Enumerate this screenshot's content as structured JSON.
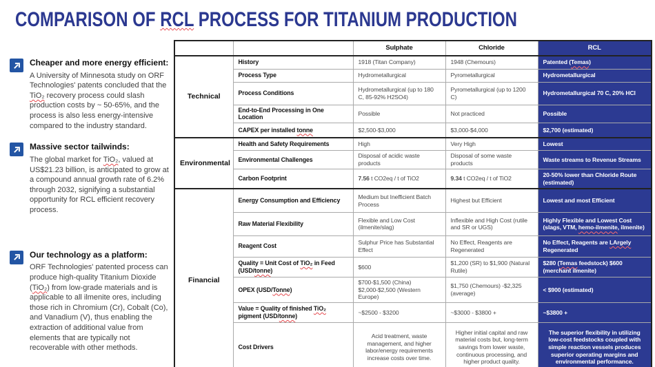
{
  "title": {
    "pre": "COMPARISON OF ",
    "rcl": "RCL",
    "post": " PROCESS FOR TITANIUM PRODUCTION"
  },
  "colors": {
    "title_blue": "#2b3890",
    "rcl_blue": "#2c3a92",
    "icon_blue": "#2355a4",
    "border_dark": "#222222",
    "border_light": "#a9a9a9",
    "body_gray": "#3f3f3f",
    "value_gray": "#4a4a4a",
    "squiggle_red": "#e5484d"
  },
  "sidebar": {
    "bullets": [
      {
        "heading": "Cheaper and more energy efficient:",
        "body": "A University of Minnesota study on ORF Technologies' patents concluded that the TiO₂ recovery process could slash production costs by ~ 50-65%, and the process is also less energy-intensive compared to the industry standard."
      },
      {
        "heading": "Massive sector tailwinds:",
        "body": "The global market for TiO₂, valued at US$21.23 billion, is anticipated to grow at a compound annual growth rate of 6.2% through 2032, signifying a substantial opportunity for RCL efficient recovery process."
      },
      {
        "heading": "Our technology as a platform:",
        "body": "ORF Technologies' patented process can produce high-quality Titanium Dioxide (TiO₂) from low-grade materials and is applicable to all ilmenite ores, including those rich in Chromium (Cr), Cobalt (Co), and Vanadium (V), thus enabling the extraction of additional value from elements that are typically not recoverable with other methods."
      }
    ]
  },
  "table": {
    "column_headers": [
      "",
      "",
      "Sulphate",
      "Chloride",
      "RCL"
    ],
    "sections": [
      {
        "category": "Technical",
        "rows": [
          {
            "attribute": "History",
            "sulphate": "1918 (Titan Company)",
            "chloride": "1948 (Chemours)",
            "rcl": "Patented (Temas)"
          },
          {
            "attribute": "Process Type",
            "sulphate": "Hydrometallurgical",
            "chloride": "Pyrometallurgical",
            "rcl": "Hydrometallurgical"
          },
          {
            "attribute": "Process Conditions",
            "sulphate": "Hydrometallurgical (up to 180 C, 85-92% H2SO4)",
            "chloride": "Pyrometallurgical (up to 1200 C)",
            "rcl": "Hydrometallurgical 70 C, 20% HCl"
          },
          {
            "attribute": "End-to-End Processing in One Location",
            "sulphate": "Possible",
            "chloride": "Not practiced",
            "rcl": "Possible"
          },
          {
            "attribute": "CAPEX per installed tonne",
            "sulphate": "$2,500-$3,000",
            "chloride": "$3,000-$4,000",
            "rcl": "$2,700 (estimated)"
          }
        ]
      },
      {
        "category": "Environmental",
        "rows": [
          {
            "attribute": "Health and Safety Requirements",
            "sulphate": "High",
            "chloride": "Very High",
            "rcl": "Lowest"
          },
          {
            "attribute": "Environmental Challenges",
            "sulphate": "Disposal of acidic waste products",
            "chloride": "Disposal of some waste products",
            "rcl": "Waste streams to Revenue Streams"
          },
          {
            "attribute": "Carbon Footprint",
            "sulphate": "**7.56** t CO2eq / t of TiO2",
            "chloride": "**9.34** t CO2eq / t of TiO2",
            "rcl": "20-50% lower than Chloride Route (estimated)"
          }
        ]
      },
      {
        "category": "Financial",
        "rows": [
          {
            "attribute": "Energy Consumption and Efficiency",
            "sulphate": "Medium but Inefficient Batch Process",
            "chloride": "Highest but Efficient",
            "rcl": "Lowest and most Efficient"
          },
          {
            "attribute": "Raw Material Flexibility",
            "sulphate": "Flexible and Low Cost (ilmenite/slag)",
            "chloride": "Inflexible and High Cost (rutile and SR or UGS)",
            "rcl": "Highly Flexible and Lowest Cost (slags, VTM, hemo-ilmenite, ilmenite)"
          },
          {
            "attribute": "Reagent Cost",
            "sulphate": "Sulphur Price has Substantial Effect",
            "chloride": "No Effect, Reagents are Regenerated",
            "rcl": "No Effect, Reagents are LArgely Regenerated"
          },
          {
            "attribute": "Quality = Unit Cost of TiO₂ in Feed (USD/tonne)",
            "sulphate": "$600",
            "chloride": "$1,200 (SR) to $1,900 (Natural Rutile)",
            "rcl": "$280 (Temas feedstock)  $600 (merchant ilmenite)"
          },
          {
            "attribute": "OPEX (USD/Tonne)",
            "sulphate": "$700-$1,500 (China) $2,000-$2,500 (Western Europe)",
            "chloride": "$1,750 (Chemours) -$2,325 (average)",
            "rcl": "< $900 (estimated)"
          },
          {
            "attribute": "Value = Quality of finished TiO₂ pigment (USD/tonne)",
            "sulphate": "~$2500 - $3200",
            "chloride": "~$3000 - $3800 +",
            "rcl": "~$3800 +"
          },
          {
            "attribute": "Cost Drivers",
            "centered": true,
            "sulphate": "Acid treatment, waste management, and higher labor/energy requirements increase costs over time.",
            "chloride": "Higher initial capital and raw material costs but, long-term savings from lower waste, continuous processing, and higher product quality.",
            "rcl": "The superior flexibility in utilizing low-cost feedstocks coupled with simple reaction vessels produces superior operating margins and environmental performance."
          }
        ]
      }
    ]
  },
  "spellcheck": {
    "sidebar": [
      "TiO₂"
    ],
    "table": [
      "tonne",
      "Tonne",
      "Temas",
      "hemo-ilmenite",
      "LArgely",
      "TiO₂"
    ]
  }
}
